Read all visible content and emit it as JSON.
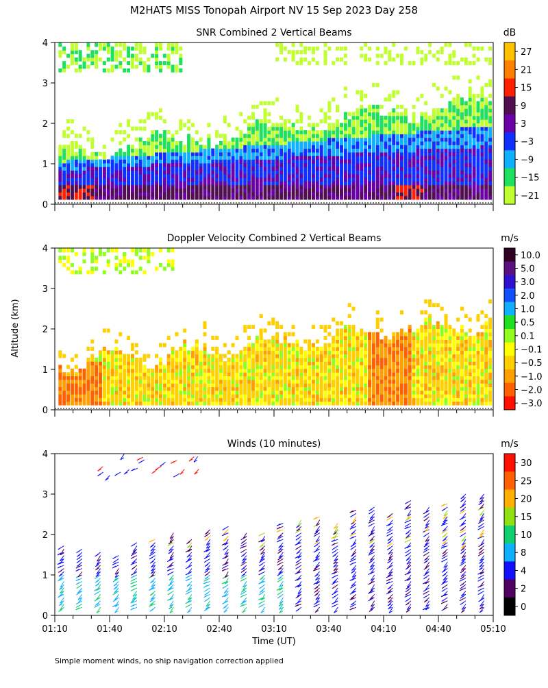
{
  "main_title": "M2HATS MISS Tonopah Airport NV  15 Sep 2023 Day 258",
  "shared_ylabel": "Altitude (km)",
  "footer_note": "Simple moment winds, no ship navigation correction applied",
  "chart_data": [
    {
      "type": "heatmap",
      "title": "SNR Combined 2 Vertical Beams",
      "units": "dB",
      "ylim": [
        0,
        4
      ],
      "yticks": [
        0,
        1,
        2,
        3,
        4
      ],
      "xlim_minutes": [
        70,
        310
      ],
      "colorbar": {
        "labels": [
          "27",
          "21",
          "15",
          "9",
          "3",
          "−3",
          "−9",
          "−15",
          "−21"
        ],
        "colors": [
          "#ffc000",
          "#ff8000",
          "#ff2000",
          "#501050",
          "#6a00a8",
          "#1030ff",
          "#10b0ff",
          "#20e060",
          "#c0ff30"
        ]
      }
    },
    {
      "type": "heatmap",
      "title": "Doppler Velocity Combined 2 Vertical Beams",
      "units": "m/s",
      "ylim": [
        0,
        4
      ],
      "yticks": [
        0,
        1,
        2,
        3,
        4
      ],
      "xlim_minutes": [
        70,
        310
      ],
      "colorbar": {
        "labels": [
          "10.0",
          "5.0",
          "3.0",
          "2.0",
          "1.0",
          "0.5",
          "0.1",
          "−0.1",
          "−0.5",
          "−1.0",
          "−2.0",
          "−3.0"
        ],
        "colors": [
          "#300020",
          "#5a1080",
          "#3010d0",
          "#1050ff",
          "#10b0ff",
          "#20e020",
          "#90ff20",
          "#ffff00",
          "#ffd000",
          "#ffa000",
          "#ff6000",
          "#ff1000"
        ]
      }
    },
    {
      "type": "scatter",
      "title": "Winds (10 minutes)",
      "units": "m/s",
      "xlabel": "Time (UT)",
      "ylim": [
        0,
        4
      ],
      "yticks": [
        0,
        1,
        2,
        3,
        4
      ],
      "xlim_minutes": [
        70,
        310
      ],
      "xtick_labels": [
        "01:10",
        "01:40",
        "02:10",
        "02:40",
        "03:10",
        "03:40",
        "04:10",
        "04:40",
        "05:10"
      ],
      "colorbar": {
        "labels": [
          "30",
          "25",
          "20",
          "15",
          "10",
          "8",
          "4",
          "2",
          "0"
        ],
        "colors": [
          "#ff1000",
          "#ff6000",
          "#ffb000",
          "#90e010",
          "#10d070",
          "#10b0ff",
          "#1010ff",
          "#500060",
          "#000000"
        ]
      }
    }
  ]
}
